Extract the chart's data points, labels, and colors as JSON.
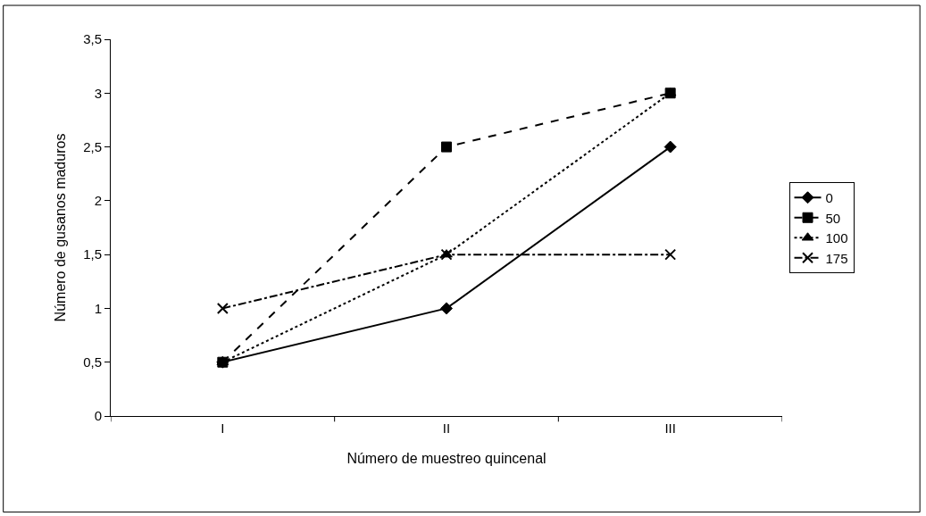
{
  "chart_data": {
    "type": "line",
    "xlabel": "Número de muestreo quincenal",
    "ylabel": "Número de gusanos maduros",
    "categories": [
      "I",
      "II",
      "III"
    ],
    "series": [
      {
        "name": "0",
        "color": "#000000",
        "marker": "diamond",
        "line_style": "solid",
        "values": [
          0.5,
          1,
          2.5
        ]
      },
      {
        "name": "50",
        "color": "#000000",
        "marker": "square",
        "line_style": "dashed",
        "values": [
          0.5,
          2.5,
          3
        ]
      },
      {
        "name": "100",
        "color": "#000000",
        "marker": "triangle",
        "line_style": "dotted",
        "values": [
          0.5,
          1.5,
          3
        ]
      },
      {
        "name": "175",
        "color": "#000000",
        "marker": "cross",
        "line_style": "dashdot",
        "values": [
          1,
          1.5,
          1.5
        ]
      }
    ],
    "ylim": [
      0,
      3.5
    ],
    "yticks": [
      0,
      {
        "value": 0.5,
        "label": "0,5"
      },
      1,
      {
        "value": 1.5,
        "label": "1,5"
      },
      2,
      {
        "value": 2.5,
        "label": "2,5"
      },
      3,
      {
        "value": 3.5,
        "label": "3,5"
      }
    ],
    "grid": false,
    "legend": "right"
  }
}
